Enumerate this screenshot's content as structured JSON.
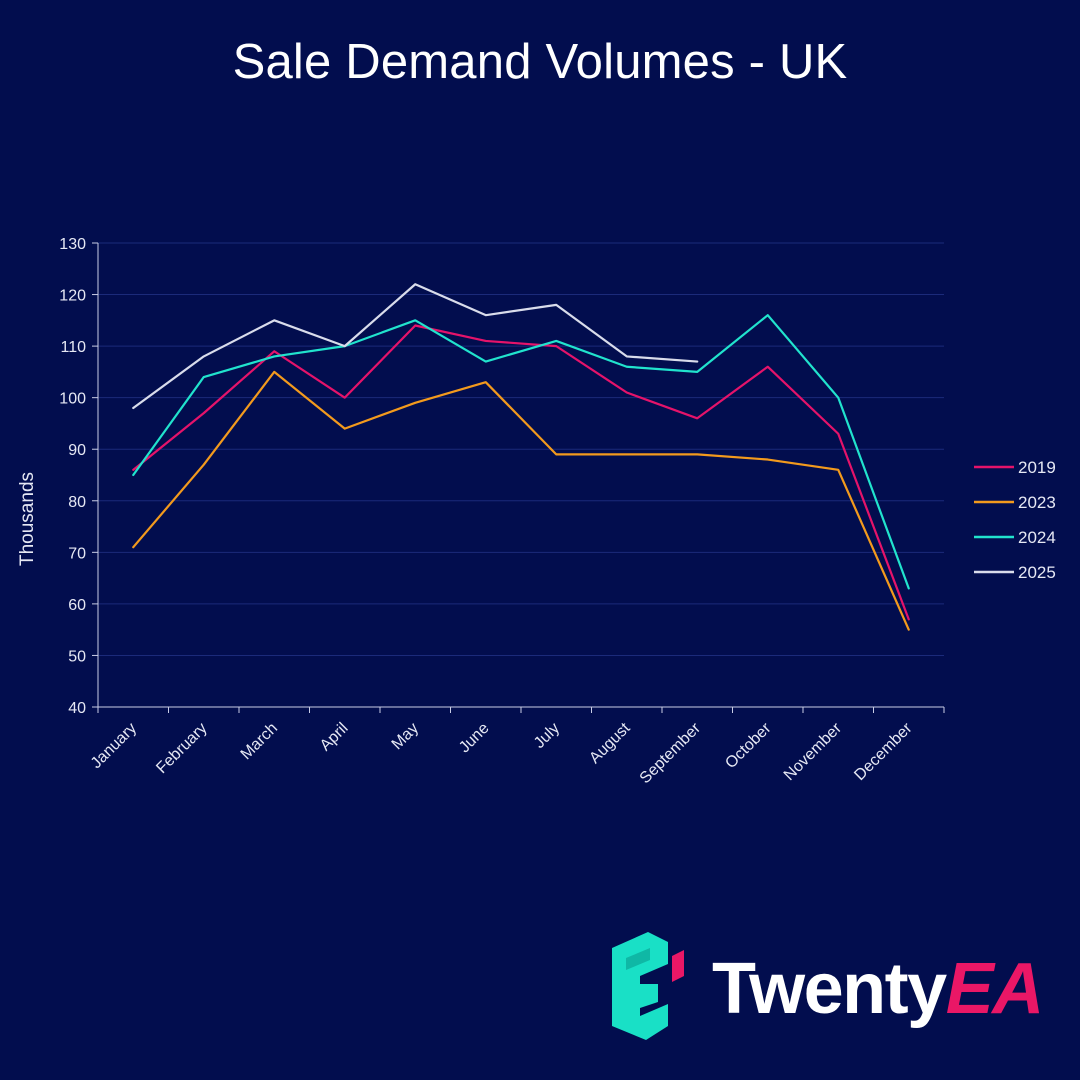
{
  "title": "Sale Demand Volumes - UK",
  "colors": {
    "background": "#020d4e",
    "grid": "#1b2a7a",
    "axis": "#c9cde6",
    "text": "#e6e8f4",
    "brand_pink": "#ea1766",
    "brand_teal": "#19e0c6"
  },
  "brand": {
    "name_main": "Twenty",
    "name_accent": "EA",
    "logo_icon": "twentyea-e-icon"
  },
  "chart_data": {
    "type": "line",
    "title": "Sale Demand Volumes - UK",
    "xlabel": "",
    "ylabel": "Thousands",
    "ylim": [
      40,
      130
    ],
    "yticks": [
      40,
      50,
      60,
      70,
      80,
      90,
      100,
      110,
      120,
      130
    ],
    "grid": true,
    "legend_position": "right",
    "categories": [
      "January",
      "February",
      "March",
      "April",
      "May",
      "June",
      "July",
      "August",
      "September",
      "October",
      "November",
      "December"
    ],
    "series": [
      {
        "name": "2019",
        "color": "#e5136a",
        "values": [
          86,
          97,
          109,
          100,
          114,
          111,
          110,
          101,
          96,
          106,
          93,
          57
        ]
      },
      {
        "name": "2023",
        "color": "#f39a1d",
        "values": [
          71,
          87,
          105,
          94,
          99,
          103,
          89,
          89,
          89,
          88,
          86,
          55
        ]
      },
      {
        "name": "2024",
        "color": "#21e3cd",
        "values": [
          85,
          104,
          108,
          110,
          115,
          107,
          111,
          106,
          105,
          116,
          100,
          63
        ]
      },
      {
        "name": "2025",
        "color": "#d9dceb",
        "values": [
          98,
          108,
          115,
          110,
          122,
          116,
          118,
          108,
          107,
          null,
          null,
          null
        ]
      }
    ]
  }
}
